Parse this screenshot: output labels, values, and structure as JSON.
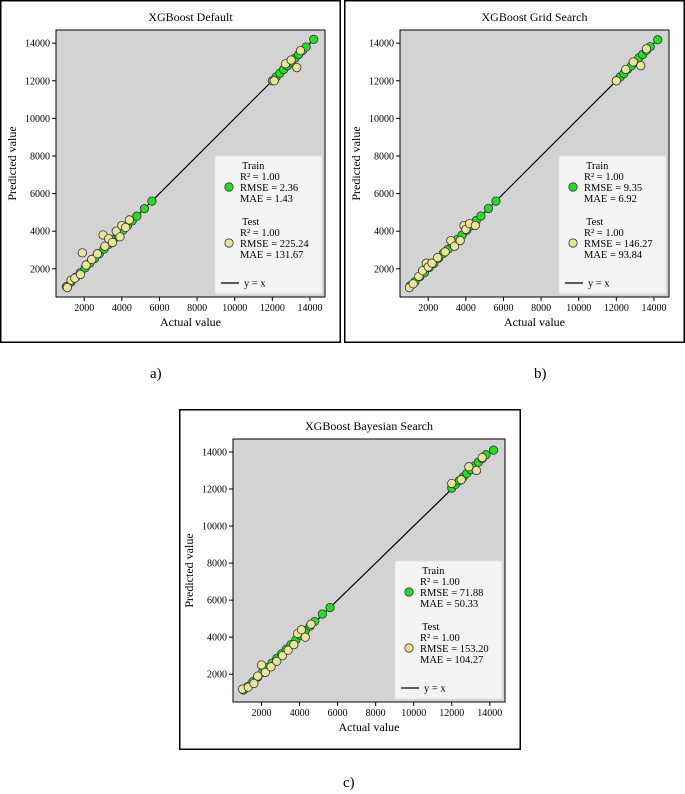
{
  "colors": {
    "plot_bg": "#d3d3d3",
    "train": "#22dd22",
    "test": "#ede49c",
    "line": "#000000",
    "frame": "#000000"
  },
  "captions": {
    "a": "a)",
    "b": "b)",
    "c": "c)"
  },
  "chart_data": [
    {
      "type": "scatter",
      "title": "XGBoost Default",
      "xlabel": "Actual value",
      "ylabel": "Predicted value",
      "xlim": [
        500,
        14800
      ],
      "ylim": [
        500,
        14700
      ],
      "xticks": [
        2000,
        4000,
        6000,
        8000,
        10000,
        12000,
        14000
      ],
      "yticks": [
        2000,
        4000,
        6000,
        8000,
        10000,
        12000,
        14000
      ],
      "legend_position": "lower-right",
      "series": [
        {
          "name": "Train",
          "x": [
            1050,
            1300,
            1550,
            1800,
            2050,
            2300,
            2550,
            2800,
            3050,
            3300,
            3550,
            3800,
            4050,
            4300,
            4550,
            4800,
            5200,
            5600,
            12000,
            12200,
            12400,
            12600,
            12800,
            13000,
            13200,
            13400,
            13600,
            13800,
            14200
          ],
          "y": [
            1050,
            1300,
            1550,
            1800,
            2050,
            2300,
            2550,
            2800,
            3050,
            3300,
            3550,
            3800,
            4050,
            4300,
            4550,
            4800,
            5200,
            5600,
            12000,
            12200,
            12400,
            12600,
            12800,
            13000,
            13200,
            13400,
            13600,
            13800,
            14200
          ]
        },
        {
          "name": "Test",
          "x": [
            1100,
            1300,
            1500,
            1800,
            1900,
            2100,
            2400,
            2700,
            3000,
            3100,
            3300,
            3500,
            3700,
            3900,
            4000,
            4200,
            4400,
            12100,
            12700,
            13000,
            13300,
            13500
          ],
          "y": [
            1000,
            1400,
            1500,
            1700,
            2850,
            2200,
            2500,
            2800,
            3800,
            3200,
            3600,
            3400,
            4000,
            3700,
            4300,
            4200,
            4600,
            12000,
            12900,
            13100,
            12700,
            13600
          ]
        }
      ],
      "legend": [
        {
          "label": "Train",
          "stats": [
            "R² = 1.00",
            "RMSE = 2.36",
            "MAE = 1.43"
          ]
        },
        {
          "label": "Test",
          "stats": [
            "R² = 1.00",
            "RMSE = 225.24",
            "MAE = 131.67"
          ]
        },
        {
          "label": "y = x"
        }
      ]
    },
    {
      "type": "scatter",
      "title": "XGBoost Grid Search",
      "xlabel": "Actual value",
      "ylabel": "Predicted value",
      "xlim": [
        500,
        14800
      ],
      "ylim": [
        500,
        14700
      ],
      "xticks": [
        2000,
        4000,
        6000,
        8000,
        10000,
        12000,
        14000
      ],
      "yticks": [
        2000,
        4000,
        6000,
        8000,
        10000,
        12000,
        14000
      ],
      "legend_position": "lower-right",
      "series": [
        {
          "name": "Train",
          "x": [
            1050,
            1300,
            1550,
            1800,
            2050,
            2300,
            2550,
            2800,
            3050,
            3300,
            3550,
            3800,
            4050,
            4300,
            4550,
            4800,
            5200,
            5600,
            12000,
            12200,
            12400,
            12600,
            12800,
            13000,
            13200,
            13400,
            13600,
            13800,
            14200
          ],
          "y": [
            1100,
            1320,
            1580,
            1790,
            2070,
            2280,
            2560,
            2820,
            3040,
            3310,
            3560,
            3790,
            4060,
            4290,
            4560,
            4810,
            5210,
            5600,
            12000,
            12200,
            12380,
            12610,
            12790,
            13000,
            13220,
            13400,
            13620,
            13810,
            14180
          ]
        },
        {
          "name": "Test",
          "x": [
            1000,
            1200,
            1500,
            1700,
            1900,
            2000,
            2200,
            2500,
            2900,
            3200,
            3400,
            3700,
            3900,
            4000,
            4200,
            4500,
            12000,
            12500,
            12900,
            13300,
            13600
          ],
          "y": [
            1000,
            1200,
            1600,
            1900,
            2300,
            2100,
            2300,
            2600,
            2900,
            3500,
            3200,
            3500,
            4300,
            4100,
            4400,
            4300,
            12000,
            12600,
            13000,
            12800,
            13700
          ]
        }
      ],
      "legend": [
        {
          "label": "Train",
          "stats": [
            "R² = 1.00",
            "RMSE = 9.35",
            "MAE = 6.92"
          ]
        },
        {
          "label": "Test",
          "stats": [
            "R² = 1.00",
            "RMSE = 146.27",
            "MAE = 93.84"
          ]
        },
        {
          "label": "y = x"
        }
      ]
    },
    {
      "type": "scatter",
      "title": "XGBoost Bayesian Search",
      "xlabel": "Actual value",
      "ylabel": "Predicted value",
      "xlim": [
        500,
        14800
      ],
      "ylim": [
        500,
        14700
      ],
      "xticks": [
        2000,
        4000,
        6000,
        8000,
        10000,
        12000,
        14000
      ],
      "yticks": [
        2000,
        4000,
        6000,
        8000,
        10000,
        12000,
        14000
      ],
      "legend_position": "lower-right",
      "series": [
        {
          "name": "Train",
          "x": [
            1050,
            1300,
            1550,
            1800,
            2050,
            2300,
            2550,
            2800,
            3050,
            3300,
            3550,
            3800,
            4050,
            4300,
            4550,
            4800,
            5200,
            5600,
            12000,
            12200,
            12400,
            12600,
            12800,
            13000,
            13200,
            13400,
            13600,
            13800,
            14200
          ],
          "y": [
            1150,
            1350,
            1600,
            1850,
            2100,
            2350,
            2600,
            2850,
            3100,
            3350,
            3600,
            3850,
            4100,
            4350,
            4600,
            4850,
            5250,
            5600,
            12050,
            12250,
            12450,
            12650,
            12850,
            13050,
            13250,
            13450,
            13650,
            13850,
            14100
          ]
        },
        {
          "name": "Test",
          "x": [
            1000,
            1300,
            1600,
            1800,
            2000,
            2200,
            2500,
            2800,
            3100,
            3400,
            3700,
            3900,
            4100,
            4300,
            4600,
            12000,
            12500,
            12900,
            13300,
            13600
          ],
          "y": [
            1200,
            1300,
            1500,
            1900,
            2500,
            2100,
            2400,
            2700,
            3000,
            3300,
            3600,
            4200,
            4400,
            4000,
            4700,
            12300,
            12500,
            13200,
            13000,
            13700
          ]
        }
      ],
      "legend": [
        {
          "label": "Train",
          "stats": [
            "R² = 1.00",
            "RMSE = 71.88",
            "MAE = 50.33"
          ]
        },
        {
          "label": "Test",
          "stats": [
            "R² = 1.00",
            "RMSE = 153.20",
            "MAE = 104.27"
          ]
        },
        {
          "label": "y = x"
        }
      ]
    }
  ]
}
